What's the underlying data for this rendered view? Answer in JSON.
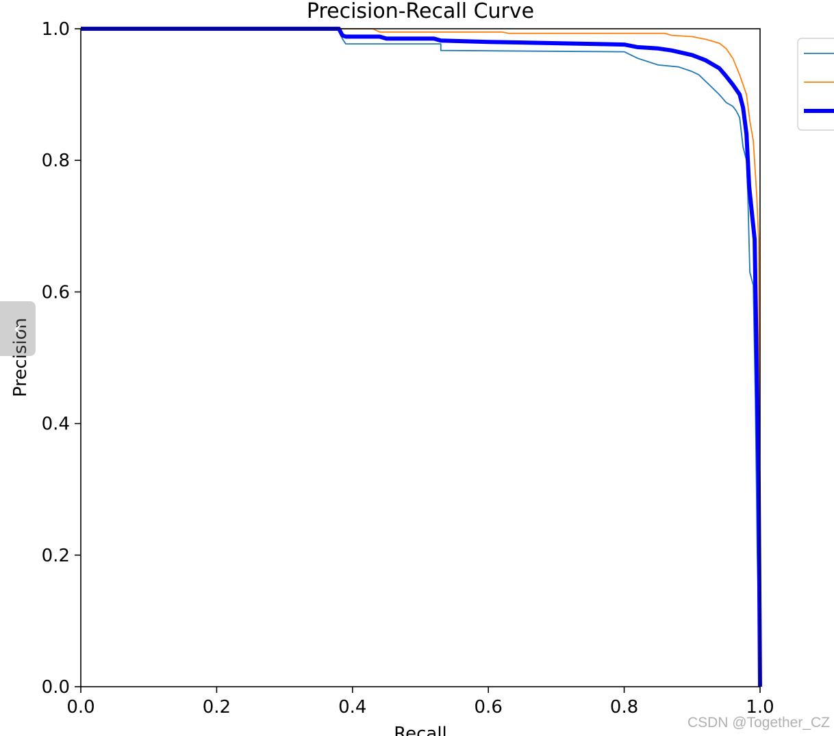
{
  "watermark": "CSDN @Together_CZ",
  "side_handle_icon": "chevron-left-icon",
  "chart_data": {
    "type": "line",
    "title": "Precision-Recall Curve",
    "xlabel": "Recall",
    "ylabel": "Precision",
    "xlim": [
      0,
      1
    ],
    "ylim": [
      0,
      1
    ],
    "xticks": [
      "0.0",
      "0.2",
      "0.4",
      "0.6",
      "0.8",
      "1.0"
    ],
    "yticks": [
      "0.0",
      "0.2",
      "0.4",
      "0.6",
      "0.8",
      "1.0"
    ],
    "grid": false,
    "legend": "upper right (partially cut off, labels not visible)",
    "series": [
      {
        "color": "#1f77b4",
        "points": [
          [
            0,
            1
          ],
          [
            0.38,
            1
          ],
          [
            0.385,
            0.985
          ],
          [
            0.39,
            0.977
          ],
          [
            0.53,
            0.977
          ],
          [
            0.53,
            0.967
          ],
          [
            0.8,
            0.965
          ],
          [
            0.82,
            0.955
          ],
          [
            0.85,
            0.945
          ],
          [
            0.88,
            0.942
          ],
          [
            0.9,
            0.935
          ],
          [
            0.91,
            0.93
          ],
          [
            0.92,
            0.92
          ],
          [
            0.93,
            0.91
          ],
          [
            0.94,
            0.9
          ],
          [
            0.95,
            0.888
          ],
          [
            0.96,
            0.882
          ],
          [
            0.965,
            0.875
          ],
          [
            0.97,
            0.865
          ],
          [
            0.975,
            0.82
          ],
          [
            0.98,
            0.8
          ],
          [
            0.982,
            0.75
          ],
          [
            0.985,
            0.63
          ],
          [
            0.99,
            0.61
          ],
          [
            0.993,
            0.44
          ],
          [
            0.996,
            0.2
          ],
          [
            1,
            0
          ]
        ]
      },
      {
        "color": "#ff7f0e",
        "points": [
          [
            0,
            1
          ],
          [
            0.43,
            1
          ],
          [
            0.44,
            0.995
          ],
          [
            0.62,
            0.995
          ],
          [
            0.63,
            0.993
          ],
          [
            0.86,
            0.993
          ],
          [
            0.87,
            0.99
          ],
          [
            0.9,
            0.988
          ],
          [
            0.92,
            0.984
          ],
          [
            0.94,
            0.978
          ],
          [
            0.95,
            0.97
          ],
          [
            0.96,
            0.955
          ],
          [
            0.97,
            0.93
          ],
          [
            0.98,
            0.9
          ],
          [
            0.985,
            0.86
          ],
          [
            0.99,
            0.83
          ],
          [
            0.995,
            0.75
          ],
          [
            0.998,
            0.68
          ],
          [
            1,
            0
          ]
        ]
      },
      {
        "color": "#0000ff",
        "points": [
          [
            0,
            1
          ],
          [
            0.38,
            1
          ],
          [
            0.385,
            0.99
          ],
          [
            0.39,
            0.988
          ],
          [
            0.44,
            0.988
          ],
          [
            0.45,
            0.985
          ],
          [
            0.52,
            0.985
          ],
          [
            0.53,
            0.982
          ],
          [
            0.6,
            0.98
          ],
          [
            0.7,
            0.978
          ],
          [
            0.8,
            0.976
          ],
          [
            0.82,
            0.972
          ],
          [
            0.85,
            0.97
          ],
          [
            0.87,
            0.967
          ],
          [
            0.9,
            0.96
          ],
          [
            0.92,
            0.952
          ],
          [
            0.94,
            0.94
          ],
          [
            0.95,
            0.928
          ],
          [
            0.96,
            0.915
          ],
          [
            0.97,
            0.9
          ],
          [
            0.975,
            0.88
          ],
          [
            0.98,
            0.84
          ],
          [
            0.984,
            0.76
          ],
          [
            0.988,
            0.72
          ],
          [
            0.992,
            0.68
          ],
          [
            0.995,
            0.5
          ],
          [
            0.998,
            0.3
          ],
          [
            1,
            0
          ]
        ]
      }
    ]
  }
}
